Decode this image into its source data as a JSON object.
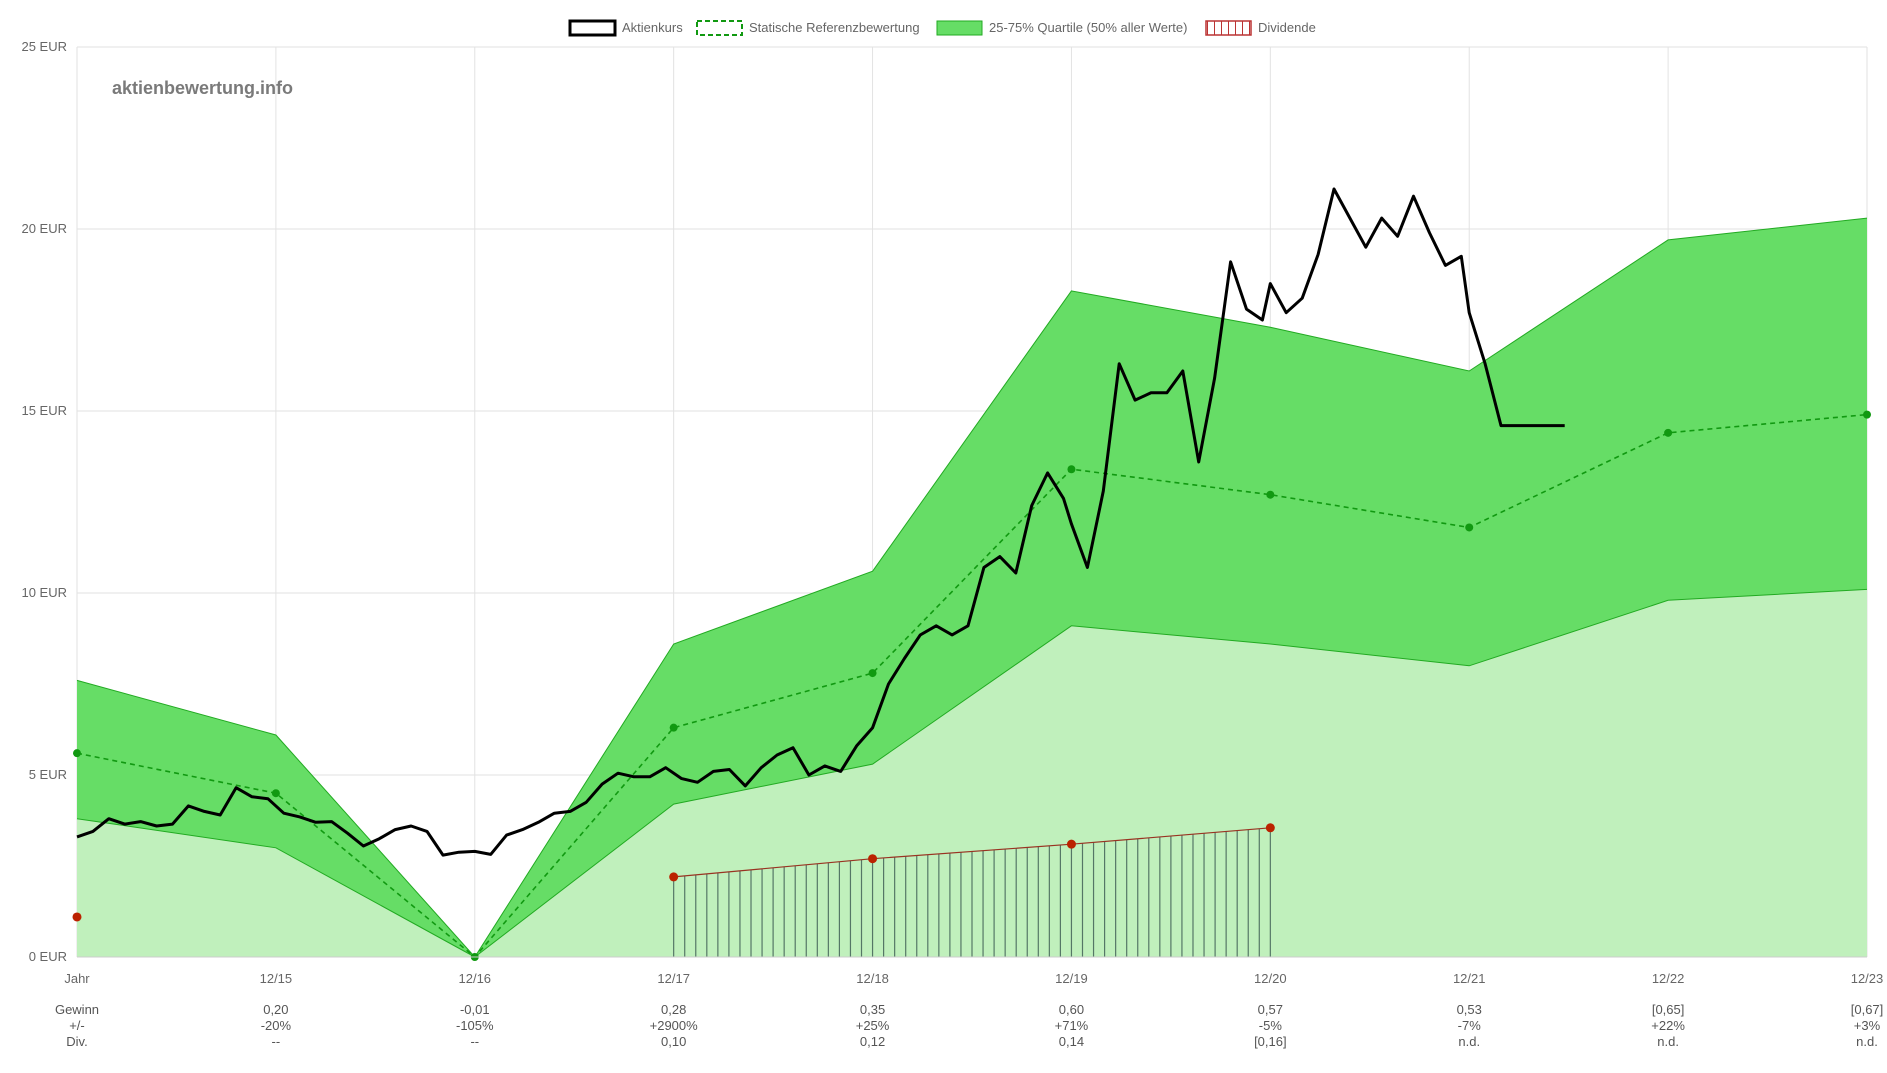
{
  "legend": {
    "price": "Aktienkurs",
    "reference": "Statische Referenzbewertung",
    "quartile": "25-75% Quartile (50% aller Werte)",
    "dividend": "Dividende"
  },
  "watermark": "aktienbewertung.info",
  "colors": {
    "price": "#000000",
    "reference": "#119911",
    "quartile_band": "#66dd66",
    "lower_area": "#c0f0bc",
    "band_edge": "#22aa22",
    "dividend_line": "#993322",
    "dividend_hatch": "#557766",
    "dividend_marker": "#bb2200",
    "grid": "#e2e2e2"
  },
  "chart_data": {
    "type": "line",
    "ylim": [
      0,
      25
    ],
    "y_unit": "EUR",
    "y_ticks": [
      "0 EUR",
      "5 EUR",
      "10 EUR",
      "15 EUR",
      "20 EUR",
      "25 EUR"
    ],
    "y_tick_values": [
      0,
      5,
      10,
      15,
      20,
      25
    ],
    "x_ticks": [
      "Jahr",
      "12/15",
      "12/16",
      "12/17",
      "12/18",
      "12/19",
      "12/20",
      "12/21",
      "12/22",
      "12/23"
    ],
    "x_tick_values": [
      0,
      1,
      2,
      3,
      4,
      5,
      6,
      7,
      8,
      9
    ],
    "grid": true,
    "legend_position": "top-center",
    "series": [
      {
        "name": "25-75% Quartile (50% aller Werte)",
        "kind": "band",
        "x": [
          0,
          1,
          2,
          3,
          4,
          5,
          6,
          7,
          8,
          9
        ],
        "upper": [
          7.6,
          6.1,
          0,
          8.6,
          10.6,
          18.3,
          17.3,
          16.1,
          19.7,
          20.3
        ],
        "lower": [
          3.8,
          3.0,
          0,
          4.2,
          5.3,
          9.1,
          8.6,
          8.0,
          9.8,
          10.1
        ]
      },
      {
        "name": "Statische Referenzbewertung",
        "kind": "dashed-line",
        "x": [
          0,
          1,
          2,
          3,
          4,
          5,
          6,
          7,
          8,
          9
        ],
        "values": [
          5.6,
          4.5,
          0,
          6.3,
          7.8,
          13.4,
          12.7,
          11.8,
          14.4,
          14.9
        ]
      },
      {
        "name": "Dividende",
        "kind": "hatched-area",
        "x": [
          0,
          3,
          4,
          5,
          6
        ],
        "values": [
          1.1,
          2.2,
          2.7,
          3.1,
          3.55
        ],
        "hatch_start": 3,
        "hatch_end": 6
      },
      {
        "name": "Aktienkurs",
        "kind": "line",
        "x": [
          0,
          0.08,
          0.16,
          0.24,
          0.32,
          0.4,
          0.48,
          0.56,
          0.64,
          0.72,
          0.8,
          0.88,
          0.96,
          1.04,
          1.12,
          1.2,
          1.28,
          1.36,
          1.44,
          1.52,
          1.6,
          1.68,
          1.76,
          1.84,
          1.92,
          2.0,
          2.08,
          2.16,
          2.24,
          2.32,
          2.4,
          2.48,
          2.56,
          2.64,
          2.72,
          2.8,
          2.88,
          2.96,
          3.04,
          3.12,
          3.2,
          3.28,
          3.36,
          3.44,
          3.52,
          3.6,
          3.68,
          3.76,
          3.84,
          3.92,
          4.0,
          4.08,
          4.16,
          4.24,
          4.32,
          4.4,
          4.48,
          4.56,
          4.64,
          4.72,
          4.8,
          4.88,
          4.96,
          5.0,
          5.08,
          5.16,
          5.24,
          5.32,
          5.4,
          5.48,
          5.56,
          5.64,
          5.72,
          5.8,
          5.88,
          5.96,
          6.0,
          6.08,
          6.16,
          6.24,
          6.32,
          6.4,
          6.48,
          6.56,
          6.64,
          6.72,
          6.8,
          6.88,
          6.96,
          7.0,
          7.08,
          7.16,
          7.24,
          7.32,
          7.4,
          7.48,
          7.56
        ],
        "values": [
          3.3,
          3.45,
          3.8,
          3.65,
          3.72,
          3.6,
          3.65,
          4.15,
          4.0,
          3.9,
          4.65,
          4.4,
          4.35,
          3.95,
          3.85,
          3.7,
          3.72,
          3.4,
          3.05,
          3.25,
          3.5,
          3.6,
          3.45,
          2.8,
          2.88,
          2.9,
          2.82,
          3.35,
          3.5,
          3.7,
          3.95,
          4.0,
          4.25,
          4.75,
          5.05,
          4.95,
          4.95,
          5.2,
          4.9,
          4.8,
          5.1,
          5.15,
          4.7,
          5.2,
          5.55,
          5.75,
          5.0,
          5.25,
          5.1,
          5.8,
          6.3,
          7.5,
          8.2,
          8.85,
          9.1,
          8.85,
          9.1,
          10.7,
          11.0,
          10.55,
          12.4,
          13.3,
          12.6,
          11.9,
          10.7,
          12.8,
          16.3,
          15.3,
          15.5,
          15.5,
          16.1,
          13.6,
          15.9,
          19.1,
          17.8,
          17.5,
          18.5,
          17.7,
          18.1,
          19.3,
          21.1,
          20.3,
          19.5,
          20.3,
          19.8,
          20.9,
          19.9,
          19.0,
          19.25,
          17.7,
          16.3,
          14.6,
          14.6,
          14.6,
          14.6,
          14.6,
          14.6
        ],
        "end_x": 7.53
      }
    ],
    "summary_rows": [
      {
        "label": "Gewinn",
        "values": [
          "",
          "0,20",
          "-0,01",
          "0,28",
          "0,35",
          "0,60",
          "0,57",
          "0,53",
          "[0,65]",
          "[0,67]"
        ]
      },
      {
        "label": "+/-",
        "values": [
          "",
          "-20%",
          "-105%",
          "+2900%",
          "+25%",
          "+71%",
          "-5%",
          "-7%",
          "+22%",
          "+3%"
        ]
      },
      {
        "label": "Div.",
        "values": [
          "",
          "--",
          "--",
          "0,10",
          "0,12",
          "0,14",
          "[0,16]",
          "n.d.",
          "n.d.",
          "n.d."
        ]
      }
    ]
  }
}
